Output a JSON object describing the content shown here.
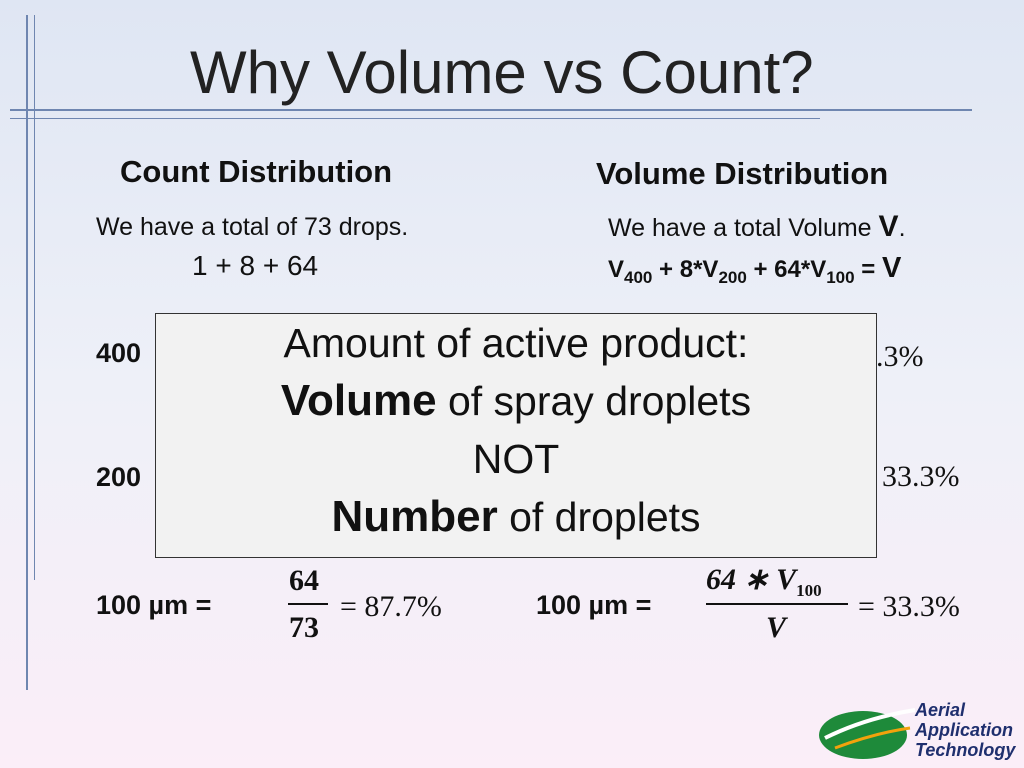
{
  "title": "Why Volume vs Count?",
  "count": {
    "heading": "Count Distribution",
    "total": "We have a total of 73 drops.",
    "sum": "1 + 8 + 64",
    "rows": [
      {
        "label": "400"
      },
      {
        "label": "200"
      },
      {
        "label": "100 µm =",
        "numerator": "64",
        "denominator": "73",
        "result": "= 87.7%"
      }
    ]
  },
  "volume": {
    "heading": "Volume Distribution",
    "total": {
      "prefix": "We have a total Volume ",
      "symbol": "V",
      "suffix": "."
    },
    "equation": {
      "v1": "V",
      "s1": "400",
      "t2": " + 8*V",
      "s2": "200",
      "t3": " + 64*V",
      "s3": "100",
      "t4": " = ",
      "v": "V"
    },
    "rows": [
      {
        "result": ".3%"
      },
      {
        "result": "33.3%"
      },
      {
        "label": "100 µm =",
        "numerator": "64 ∗ V",
        "numerator_sub": "100",
        "denominator": "V",
        "result": "= 33.3%"
      }
    ]
  },
  "callout": {
    "line1": "Amount of active product:",
    "line2_bold": "Volume",
    "line2_rest": " of spray droplets",
    "line3": "NOT",
    "line4_bold": "Number",
    "line4_rest": " of droplets"
  },
  "logo": {
    "line1": "Aerial",
    "line2": "Application",
    "line3": "Technology"
  }
}
